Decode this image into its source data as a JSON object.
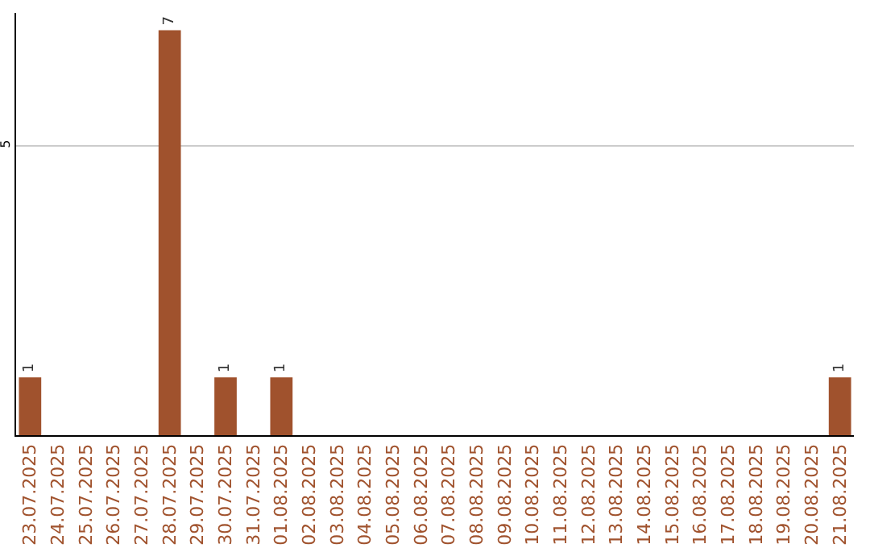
{
  "chart_data": {
    "type": "bar",
    "categories": [
      "23.07.2025",
      "24.07.2025",
      "25.07.2025",
      "26.07.2025",
      "27.07.2025",
      "28.07.2025",
      "29.07.2025",
      "30.07.2025",
      "31.07.2025",
      "01.08.2025",
      "02.08.2025",
      "03.08.2025",
      "04.08.2025",
      "05.08.2025",
      "06.08.2025",
      "07.08.2025",
      "08.08.2025",
      "09.08.2025",
      "10.08.2025",
      "11.08.2025",
      "12.08.2025",
      "13.08.2025",
      "14.08.2025",
      "15.08.2025",
      "16.08.2025",
      "17.08.2025",
      "18.08.2025",
      "19.08.2025",
      "20.08.2025",
      "21.08.2025"
    ],
    "values": [
      1,
      0,
      0,
      0,
      0,
      7,
      0,
      1,
      0,
      1,
      0,
      0,
      0,
      0,
      0,
      0,
      0,
      0,
      0,
      0,
      0,
      0,
      0,
      0,
      0,
      0,
      0,
      0,
      0,
      1
    ],
    "value_labels": [
      "1",
      null,
      null,
      null,
      null,
      "7",
      null,
      "1",
      null,
      "1",
      null,
      null,
      null,
      null,
      null,
      null,
      null,
      null,
      null,
      null,
      null,
      null,
      null,
      null,
      null,
      null,
      null,
      null,
      null,
      "1"
    ],
    "color": "#a0522d",
    "ylim": [
      0,
      7.3
    ],
    "yticks": [
      5
    ],
    "grid": "y"
  }
}
